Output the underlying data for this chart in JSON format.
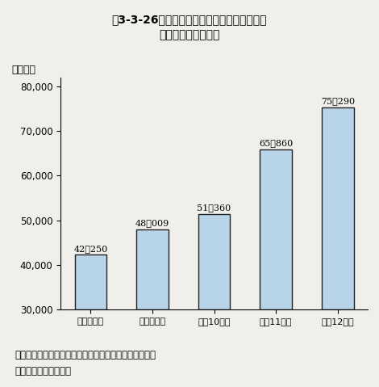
{
  "title_line1": "第3-3-26図　日本育英会奨学金貸与人員総数",
  "title_line2": "（大学院生）の推移",
  "ylabel": "（人数）",
  "categories": [
    "平成８年度",
    "平成９年度",
    "平成10年度",
    "平成11年度",
    "平成12年度"
  ],
  "values": [
    42250,
    48009,
    51360,
    65860,
    75290
  ],
  "value_labels": [
    "42，250",
    "48，009",
    "51，360",
    "65，860",
    "75，290"
  ],
  "ylim": [
    30000,
    82000
  ],
  "yticks": [
    30000,
    40000,
    50000,
    60000,
    70000,
    80000
  ],
  "ytick_labels": [
    "30,000",
    "40,000",
    "50,000",
    "60,000",
    "70,000",
    "80,000"
  ],
  "bar_color": "#b8d4e8",
  "bar_edge_color": "#222222",
  "background_color": "#f0efea",
  "note_line1": "注）各年度における当初予算措置人数を使用している。",
  "note_line2": "資料：文部科学省調べ"
}
